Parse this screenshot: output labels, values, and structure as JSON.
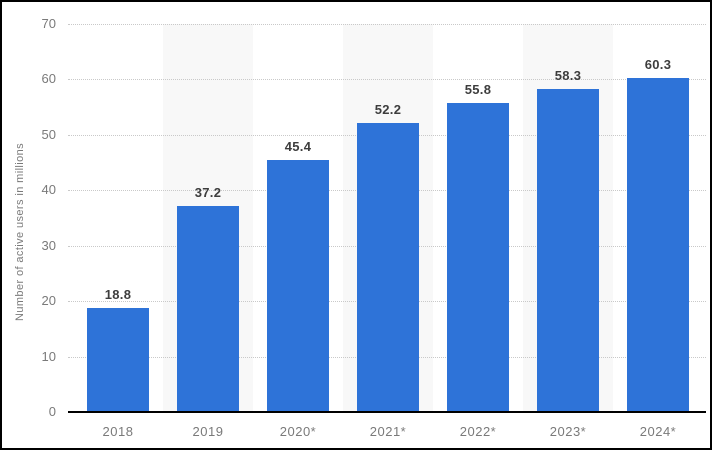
{
  "chart_data": {
    "type": "bar",
    "title": "",
    "categories": [
      "2018",
      "2019",
      "2020*",
      "2021*",
      "2022*",
      "2023*",
      "2024*"
    ],
    "values": [
      18.8,
      37.2,
      45.4,
      52.2,
      55.8,
      58.3,
      60.3
    ],
    "value_labels": [
      "18.8",
      "37.2",
      "45.4",
      "52.2",
      "55.8",
      "58.3",
      "60.3"
    ],
    "xlabel": "",
    "ylabel": "Number of active users in millions",
    "ylim": [
      0,
      70
    ],
    "yticks": [
      0,
      10,
      20,
      30,
      40,
      50,
      60,
      70
    ],
    "grid": "horizontal-dotted",
    "legend": "none",
    "shaded_columns": [
      1,
      3,
      5
    ],
    "colors": {
      "bar": "#2e73d8",
      "band": "#f8f8f8",
      "gridline": "#c9c9c9",
      "axis_line": "#000000",
      "tick_label": "#7a7a7a",
      "value_label": "#3d3d3d",
      "background": "#ffffff",
      "border": "#000000"
    }
  }
}
